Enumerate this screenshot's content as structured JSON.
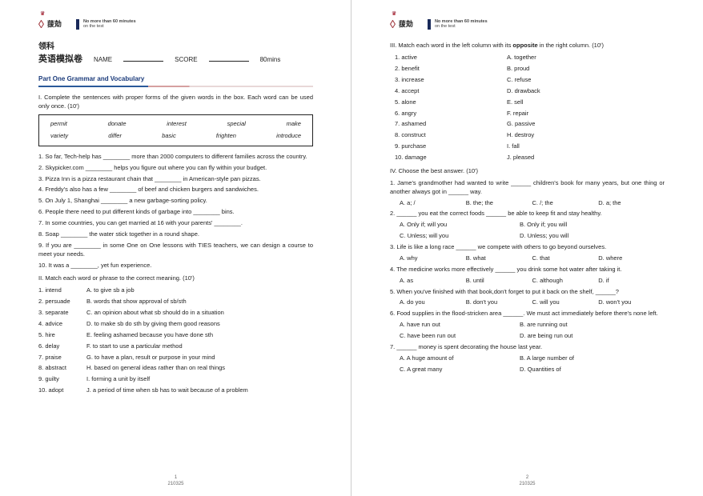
{
  "logo": {
    "name": "菝勀",
    "tagline_top": "No more than 60 minutes",
    "tagline_bottom": "on the test"
  },
  "header": {
    "subject_cn": "领科",
    "title_cn": "英语模拟卷",
    "name_label": "NAME",
    "score_label": "SCORE",
    "duration": "80mins"
  },
  "part1": {
    "title": "Part One Grammar and Vocabulary",
    "s1_instr": "I. Complete the sentences with proper forms of the given words in the box. Each word can be used only once. (10')",
    "words_row1": [
      "permit",
      "donate",
      "interest",
      "special",
      "make"
    ],
    "words_row2": [
      "variety",
      "differ",
      "basic",
      "frighten",
      "introduce"
    ],
    "q": [
      "1. So far, Tech-help has ________ more than 2000 computers to different families across the country.",
      "2. Skypicker.com ________ helps you figure out where you can fly within your budget.",
      "3. Pizza Inn is a pizza restaurant chain that ________ in American-style pan pizzas.",
      "4. Freddy's also has a few ________ of beef and chicken burgers and sandwiches.",
      "5. On July 1, Shanghai ________ a new garbage-sorting policy.",
      "6. People there need to put different kinds of garbage into ________ bins.",
      "7. In some countries, you can get married at 16 with your parents' ________.",
      "8. Soap ________ the water stick together in a round shape.",
      "9. If you are ________ in some One on One lessons with TIES teachers, we can design a course to meet your needs.",
      "10. It was a ________, yet fun experience."
    ],
    "s2_instr": "II. Match each word or phrase to the correct meaning. (10')",
    "match": [
      {
        "n": "1. intend",
        "d": "A. to give sb a job"
      },
      {
        "n": "2. persuade",
        "d": "B. words that show approval of sb/sth"
      },
      {
        "n": "3. separate",
        "d": "C. an opinion about what sb should do in a situation"
      },
      {
        "n": "4. advice",
        "d": "D. to make sb do sth by giving them good reasons"
      },
      {
        "n": "5. hire",
        "d": "E. feeling ashamed because you have done sth"
      },
      {
        "n": "6. delay",
        "d": "F. to start to use a particular method"
      },
      {
        "n": "7. praise",
        "d": "G. to have a plan, result or purpose in your mind"
      },
      {
        "n": "8. abstract",
        "d": "H. based on general ideas rather than on real things"
      },
      {
        "n": "9. guilty",
        "d": "I. forming a unit by itself"
      },
      {
        "n": "10. adopt",
        "d": "J. a period of time when sb has to wait because of a problem"
      }
    ]
  },
  "page2": {
    "s3_instr_a": "III. Match each word in the left column with its ",
    "s3_instr_b": "opposite",
    "s3_instr_c": " in the right column. (10')",
    "opp": [
      {
        "l": "1. active",
        "r": "A. together"
      },
      {
        "l": "2. benefit",
        "r": "B. proud"
      },
      {
        "l": "3. increase",
        "r": "C. refuse"
      },
      {
        "l": "4. accept",
        "r": "D. drawback"
      },
      {
        "l": "5. alone",
        "r": "E. sell"
      },
      {
        "l": "6. angry",
        "r": "F. repair"
      },
      {
        "l": "7. ashamed",
        "r": "G. passive"
      },
      {
        "l": "8. construct",
        "r": "H. destroy"
      },
      {
        "l": "9. purchase",
        "r": "I. fall"
      },
      {
        "l": "10. damage",
        "r": "J. pleased"
      }
    ],
    "s4_instr": "IV. Choose the best answer. (10')",
    "mcq": [
      {
        "q": "1. Jame's grandmother had wanted to write ______ children's book for many years, but one thing or another always got in ______ way.",
        "c": [
          "A. a; /",
          "B. the; the",
          "C. /; the",
          "D. a; the"
        ]
      },
      {
        "q": "2. ______ you eat the correct foods ______ be able to keep fit and stay healthy.",
        "c2": [
          [
            "A. Only if; will you",
            "B. Only if; you will"
          ],
          [
            "C. Unless; will you",
            "D. Unless; you will"
          ]
        ]
      },
      {
        "q": "3. Life is like a long race ______ we compete with others to go beyond ourselves.",
        "c": [
          "A. why",
          "B. what",
          "C. that",
          "D. where"
        ]
      },
      {
        "q": "4. The medicine works more effectively ______ you drink some hot water after taking it.",
        "c": [
          "A. as",
          "B. until",
          "C. although",
          "D. if"
        ]
      },
      {
        "q": "5. When you've finished with that book,don't forget to put it back on the shelf, ______?",
        "c": [
          "A. do you",
          "B. don't you",
          "C. will you",
          "D. won't you"
        ]
      },
      {
        "q": "6. Food supplies in the flood-stricken area ______. We must act immediately before there's none left.",
        "c2": [
          [
            "A. have run out",
            "B. are running out"
          ],
          [
            "C. have been run out",
            "D. are being run out"
          ]
        ]
      },
      {
        "q": "7. ______ money is spent decorating the house last year.",
        "c2": [
          [
            "A. A huge amount of",
            "B. A large number of"
          ],
          [
            "C. A great many",
            "D. Quantities of"
          ]
        ]
      }
    ]
  },
  "footer": {
    "p1_num": "1",
    "p2_num": "2",
    "code": "210325"
  }
}
